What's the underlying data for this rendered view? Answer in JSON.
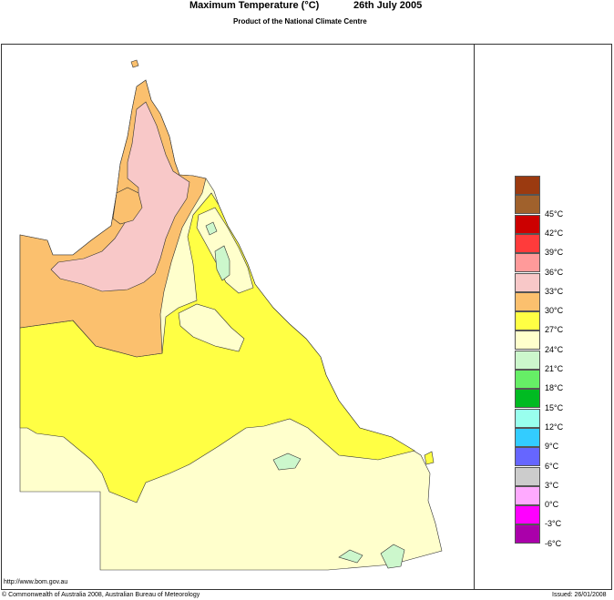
{
  "title": {
    "main": "Maximum Temperature (°C)",
    "date": "26th July 2005",
    "subtitle": "Product of the National Climate Centre"
  },
  "legend": {
    "items": [
      {
        "color": "#9b3a10",
        "label": ""
      },
      {
        "color": "#a0612c",
        "label": "45°C"
      },
      {
        "color": "#cc0000",
        "label": "42°C"
      },
      {
        "color": "#ff3b3b",
        "label": "39°C"
      },
      {
        "color": "#ff9a9a",
        "label": "36°C"
      },
      {
        "color": "#f8c8c8",
        "label": "33°C"
      },
      {
        "color": "#fbc06e",
        "label": "30°C"
      },
      {
        "color": "#ffff44",
        "label": "27°C"
      },
      {
        "color": "#ffffcc",
        "label": "24°C"
      },
      {
        "color": "#ccf7cc",
        "label": "21°C"
      },
      {
        "color": "#66ee66",
        "label": "18°C"
      },
      {
        "color": "#00bb22",
        "label": "15°C"
      },
      {
        "color": "#99ffee",
        "label": "12°C"
      },
      {
        "color": "#33ccff",
        "label": "9°C"
      },
      {
        "color": "#6666ff",
        "label": "6°C"
      },
      {
        "color": "#cccccc",
        "label": "3°C"
      },
      {
        "color": "#ffaaff",
        "label": "0°C"
      },
      {
        "color": "#ff00ff",
        "label": "-3°C"
      },
      {
        "color": "#aa00aa",
        "label": "-6°C"
      }
    ]
  },
  "map_regions": [
    {
      "id": "hot-northwest",
      "color": "#fbc06e"
    },
    {
      "id": "very-hot-peninsula",
      "color": "#f8c8c8"
    },
    {
      "id": "warm-central",
      "color": "#ffff44"
    },
    {
      "id": "mild-south",
      "color": "#ffffcc"
    },
    {
      "id": "cool-patches",
      "color": "#ccf7cc"
    }
  ],
  "footer": {
    "url": "http://www.bom.gov.au",
    "copyright": "© Commonwealth of Australia 2008, Australian Bureau of Meteorology",
    "issued": "Issued: 26/01/2008"
  }
}
